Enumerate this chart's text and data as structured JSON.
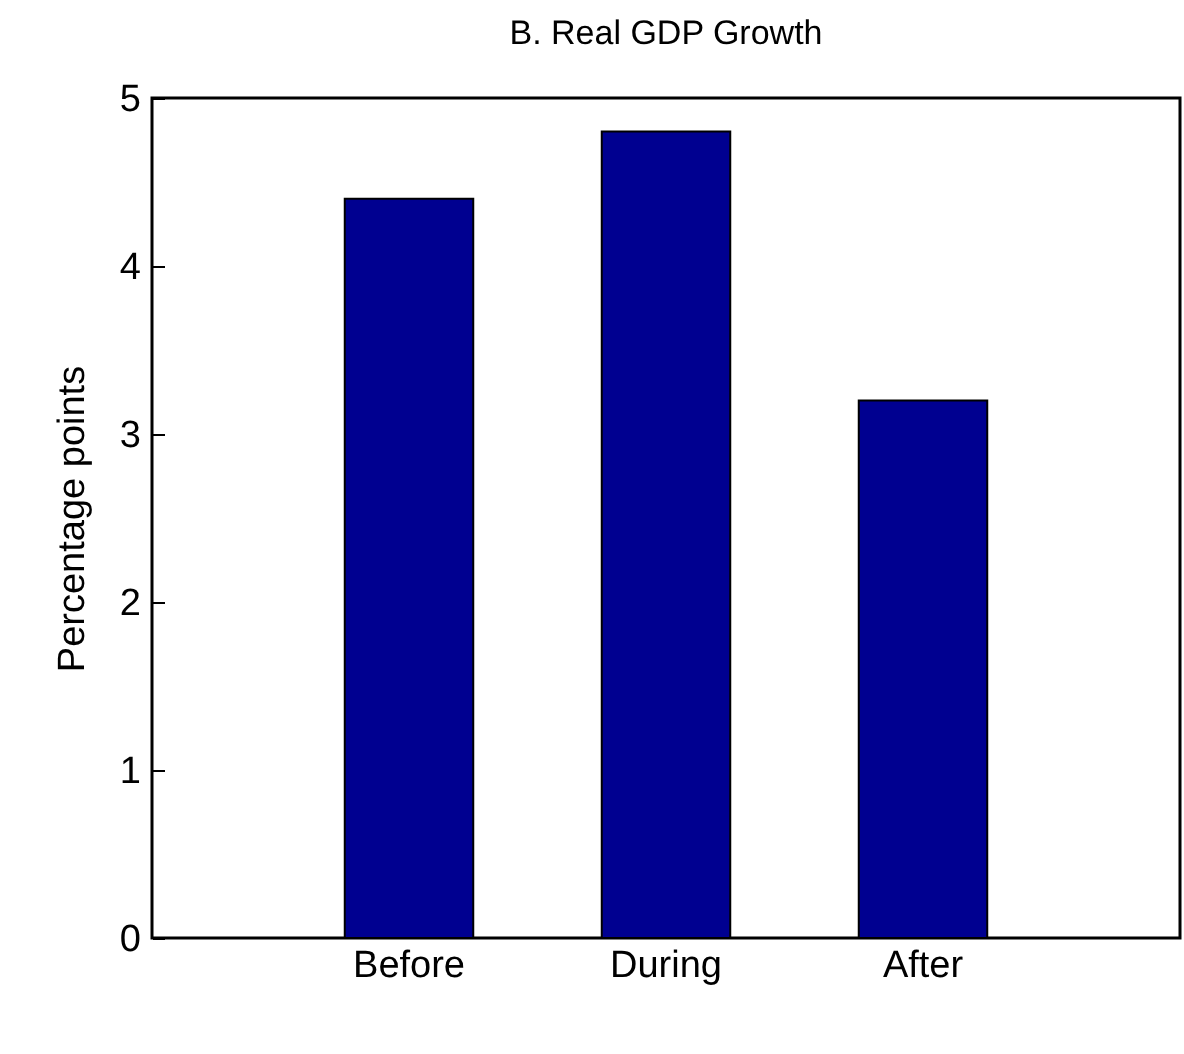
{
  "chart_data": {
    "type": "bar",
    "title": "B.  Real GDP Growth",
    "ylabel": "Percentage points",
    "categories": [
      "Before",
      "During",
      "After"
    ],
    "values": [
      4.4,
      4.8,
      3.2
    ],
    "color": "#000090",
    "ylim": [
      0,
      5
    ],
    "yticks": [
      0,
      1,
      2,
      3,
      4,
      5
    ],
    "grid": false
  }
}
